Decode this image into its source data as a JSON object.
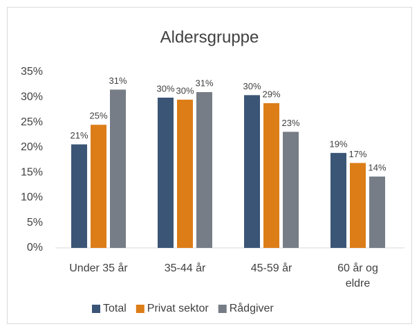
{
  "chart_data": {
    "type": "bar",
    "title": "Aldersgruppe",
    "categories": [
      "Under 35 år",
      "35-44 år",
      "45-59 år",
      "60 år og eldre"
    ],
    "series": [
      {
        "name": "Total",
        "color": "#3b5576",
        "values": [
          20.6,
          29.9,
          30.4,
          18.9
        ],
        "value_labels": [
          "21%",
          "30%",
          "30%",
          "19%"
        ]
      },
      {
        "name": "Privat sektor",
        "color": "#dc7d18",
        "values": [
          24.5,
          29.5,
          28.8,
          16.9
        ],
        "value_labels": [
          "25%",
          "30%",
          "29%",
          "17%"
        ]
      },
      {
        "name": "Rådgiver",
        "color": "#767d86",
        "values": [
          31.5,
          31.0,
          23.1,
          14.2
        ],
        "value_labels": [
          "31%",
          "31%",
          "23%",
          "14%"
        ]
      }
    ],
    "ylim": [
      0,
      35
    ],
    "yticks": [
      {
        "value": 0,
        "label": "0%"
      },
      {
        "value": 5,
        "label": "5%"
      },
      {
        "value": 10,
        "label": "10%"
      },
      {
        "value": 15,
        "label": "15%"
      },
      {
        "value": 20,
        "label": "20%"
      },
      {
        "value": 25,
        "label": "25%"
      },
      {
        "value": 30,
        "label": "30%"
      },
      {
        "value": 35,
        "label": "35%"
      }
    ],
    "grid": false,
    "legend": "bottom"
  }
}
